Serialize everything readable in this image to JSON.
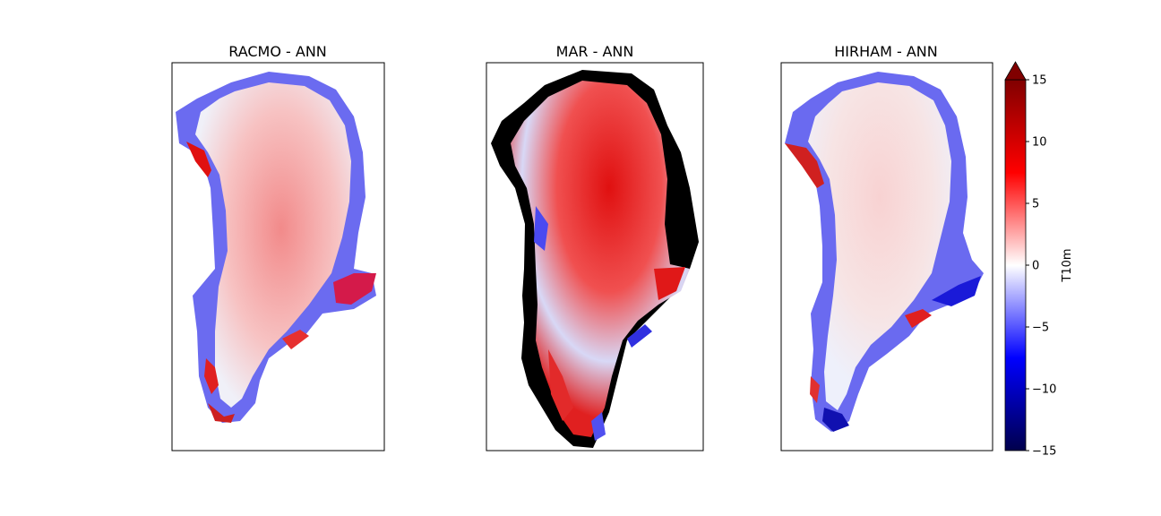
{
  "chart_data": [
    {
      "type": "heatmap",
      "title": "RACMO - ANN",
      "variable": "T10m",
      "colormap": "seismic",
      "description_values": {
        "interior_range": [
          1,
          5
        ],
        "margin_range": [
          -15,
          15
        ]
      }
    },
    {
      "type": "heatmap",
      "title": "MAR - ANN",
      "variable": "T10m",
      "colormap": "seismic",
      "masked_color": "#000000",
      "description_values": {
        "interior_range": [
          -6,
          12
        ],
        "margin_range": [
          -15,
          15
        ]
      }
    },
    {
      "type": "heatmap",
      "title": "HIRHAM - ANN",
      "variable": "T10m",
      "colormap": "seismic",
      "description_values": {
        "interior_range": [
          0,
          4
        ],
        "margin_range": [
          -15,
          15
        ]
      }
    }
  ],
  "colorbar": {
    "label": "T10m",
    "vmin": -15,
    "vmax": 15,
    "extend": "max",
    "ticks": [
      "−15",
      "−10",
      "−5",
      "0",
      "5",
      "10",
      "15"
    ],
    "tick_values": [
      -15,
      -10,
      -5,
      0,
      5,
      10,
      15
    ],
    "colors": {
      "low": "#00004c",
      "mid_low": "#0000ff",
      "zero": "#ffffff",
      "mid_high": "#ff0000",
      "high": "#7f0000"
    }
  }
}
